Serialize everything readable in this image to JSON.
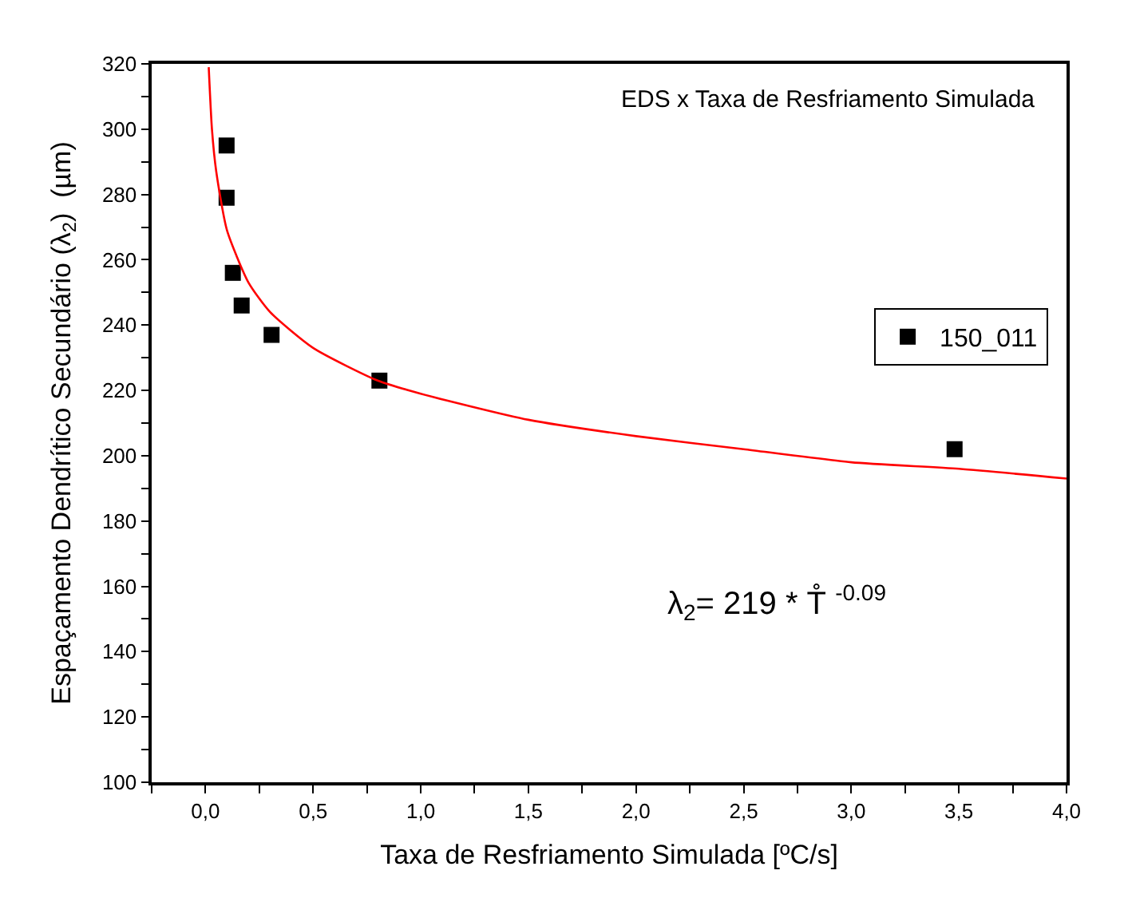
{
  "chart_data": {
    "type": "scatter",
    "xlabel": "Taxa de Resfriamento Simulada [ºC/s]",
    "ylabel": "Espaçamento Dendrítico Secundário (λ$_{2}$)  (µm)",
    "annotations": [
      "EDS x Taxa de Resfriamento Simulada",
      "λ$_{2}$= 219 * T̊ $^{-0.09}$"
    ],
    "series": [
      {
        "name": "150_011",
        "marker": "square",
        "color": "#000000",
        "x": [
          0.098,
          0.098,
          0.127,
          0.168,
          0.307,
          0.808,
          3.48
        ],
        "values": [
          295,
          279,
          256,
          246,
          237,
          223,
          202
        ]
      },
      {
        "type": "line",
        "marker": "none",
        "color": "#ff0000",
        "x": [
          0.015,
          0.03,
          0.05,
          0.1,
          0.2,
          0.3,
          0.5,
          0.8,
          1.0,
          1.5,
          2.0,
          2.5,
          3.0,
          3.5,
          4.0
        ],
        "values": [
          319,
          300,
          287,
          269,
          253,
          244,
          233,
          223,
          219,
          211,
          206,
          202,
          198,
          196,
          193
        ]
      }
    ],
    "xlim": [
      -0.25,
      4.0
    ],
    "xticks": [
      {
        "value": -0.25,
        "label": null
      },
      {
        "value": 0.0,
        "label": "0,0"
      },
      {
        "value": 0.25,
        "label": null
      },
      {
        "value": 0.5,
        "label": "0,5"
      },
      {
        "value": 0.75,
        "label": null
      },
      {
        "value": 1.0,
        "label": "1,0"
      },
      {
        "value": 1.25,
        "label": null
      },
      {
        "value": 1.5,
        "label": "1,5"
      },
      {
        "value": 1.75,
        "label": null
      },
      {
        "value": 2.0,
        "label": "2,0"
      },
      {
        "value": 2.25,
        "label": null
      },
      {
        "value": 2.5,
        "label": "2,5"
      },
      {
        "value": 2.75,
        "label": null
      },
      {
        "value": 3.0,
        "label": "3,0"
      },
      {
        "value": 3.25,
        "label": null
      },
      {
        "value": 3.5,
        "label": "3,5"
      },
      {
        "value": 3.75,
        "label": null
      },
      {
        "value": 4.0,
        "label": "4,0"
      }
    ],
    "ylim": [
      100,
      320
    ],
    "yticks": [
      100,
      {
        "value": 110,
        "label": null
      },
      120,
      {
        "value": 130,
        "label": null
      },
      140,
      {
        "value": 150,
        "label": null
      },
      160,
      {
        "value": 170,
        "label": null
      },
      180,
      {
        "value": 190,
        "label": null
      },
      200,
      {
        "value": 210,
        "label": null
      },
      220,
      {
        "value": 230,
        "label": null
      },
      240,
      {
        "value": 250,
        "label": null
      },
      260,
      {
        "value": 270,
        "label": null
      },
      280,
      {
        "value": 290,
        "label": null
      },
      300,
      {
        "value": 310,
        "label": null
      },
      320
    ],
    "legend": "right"
  }
}
